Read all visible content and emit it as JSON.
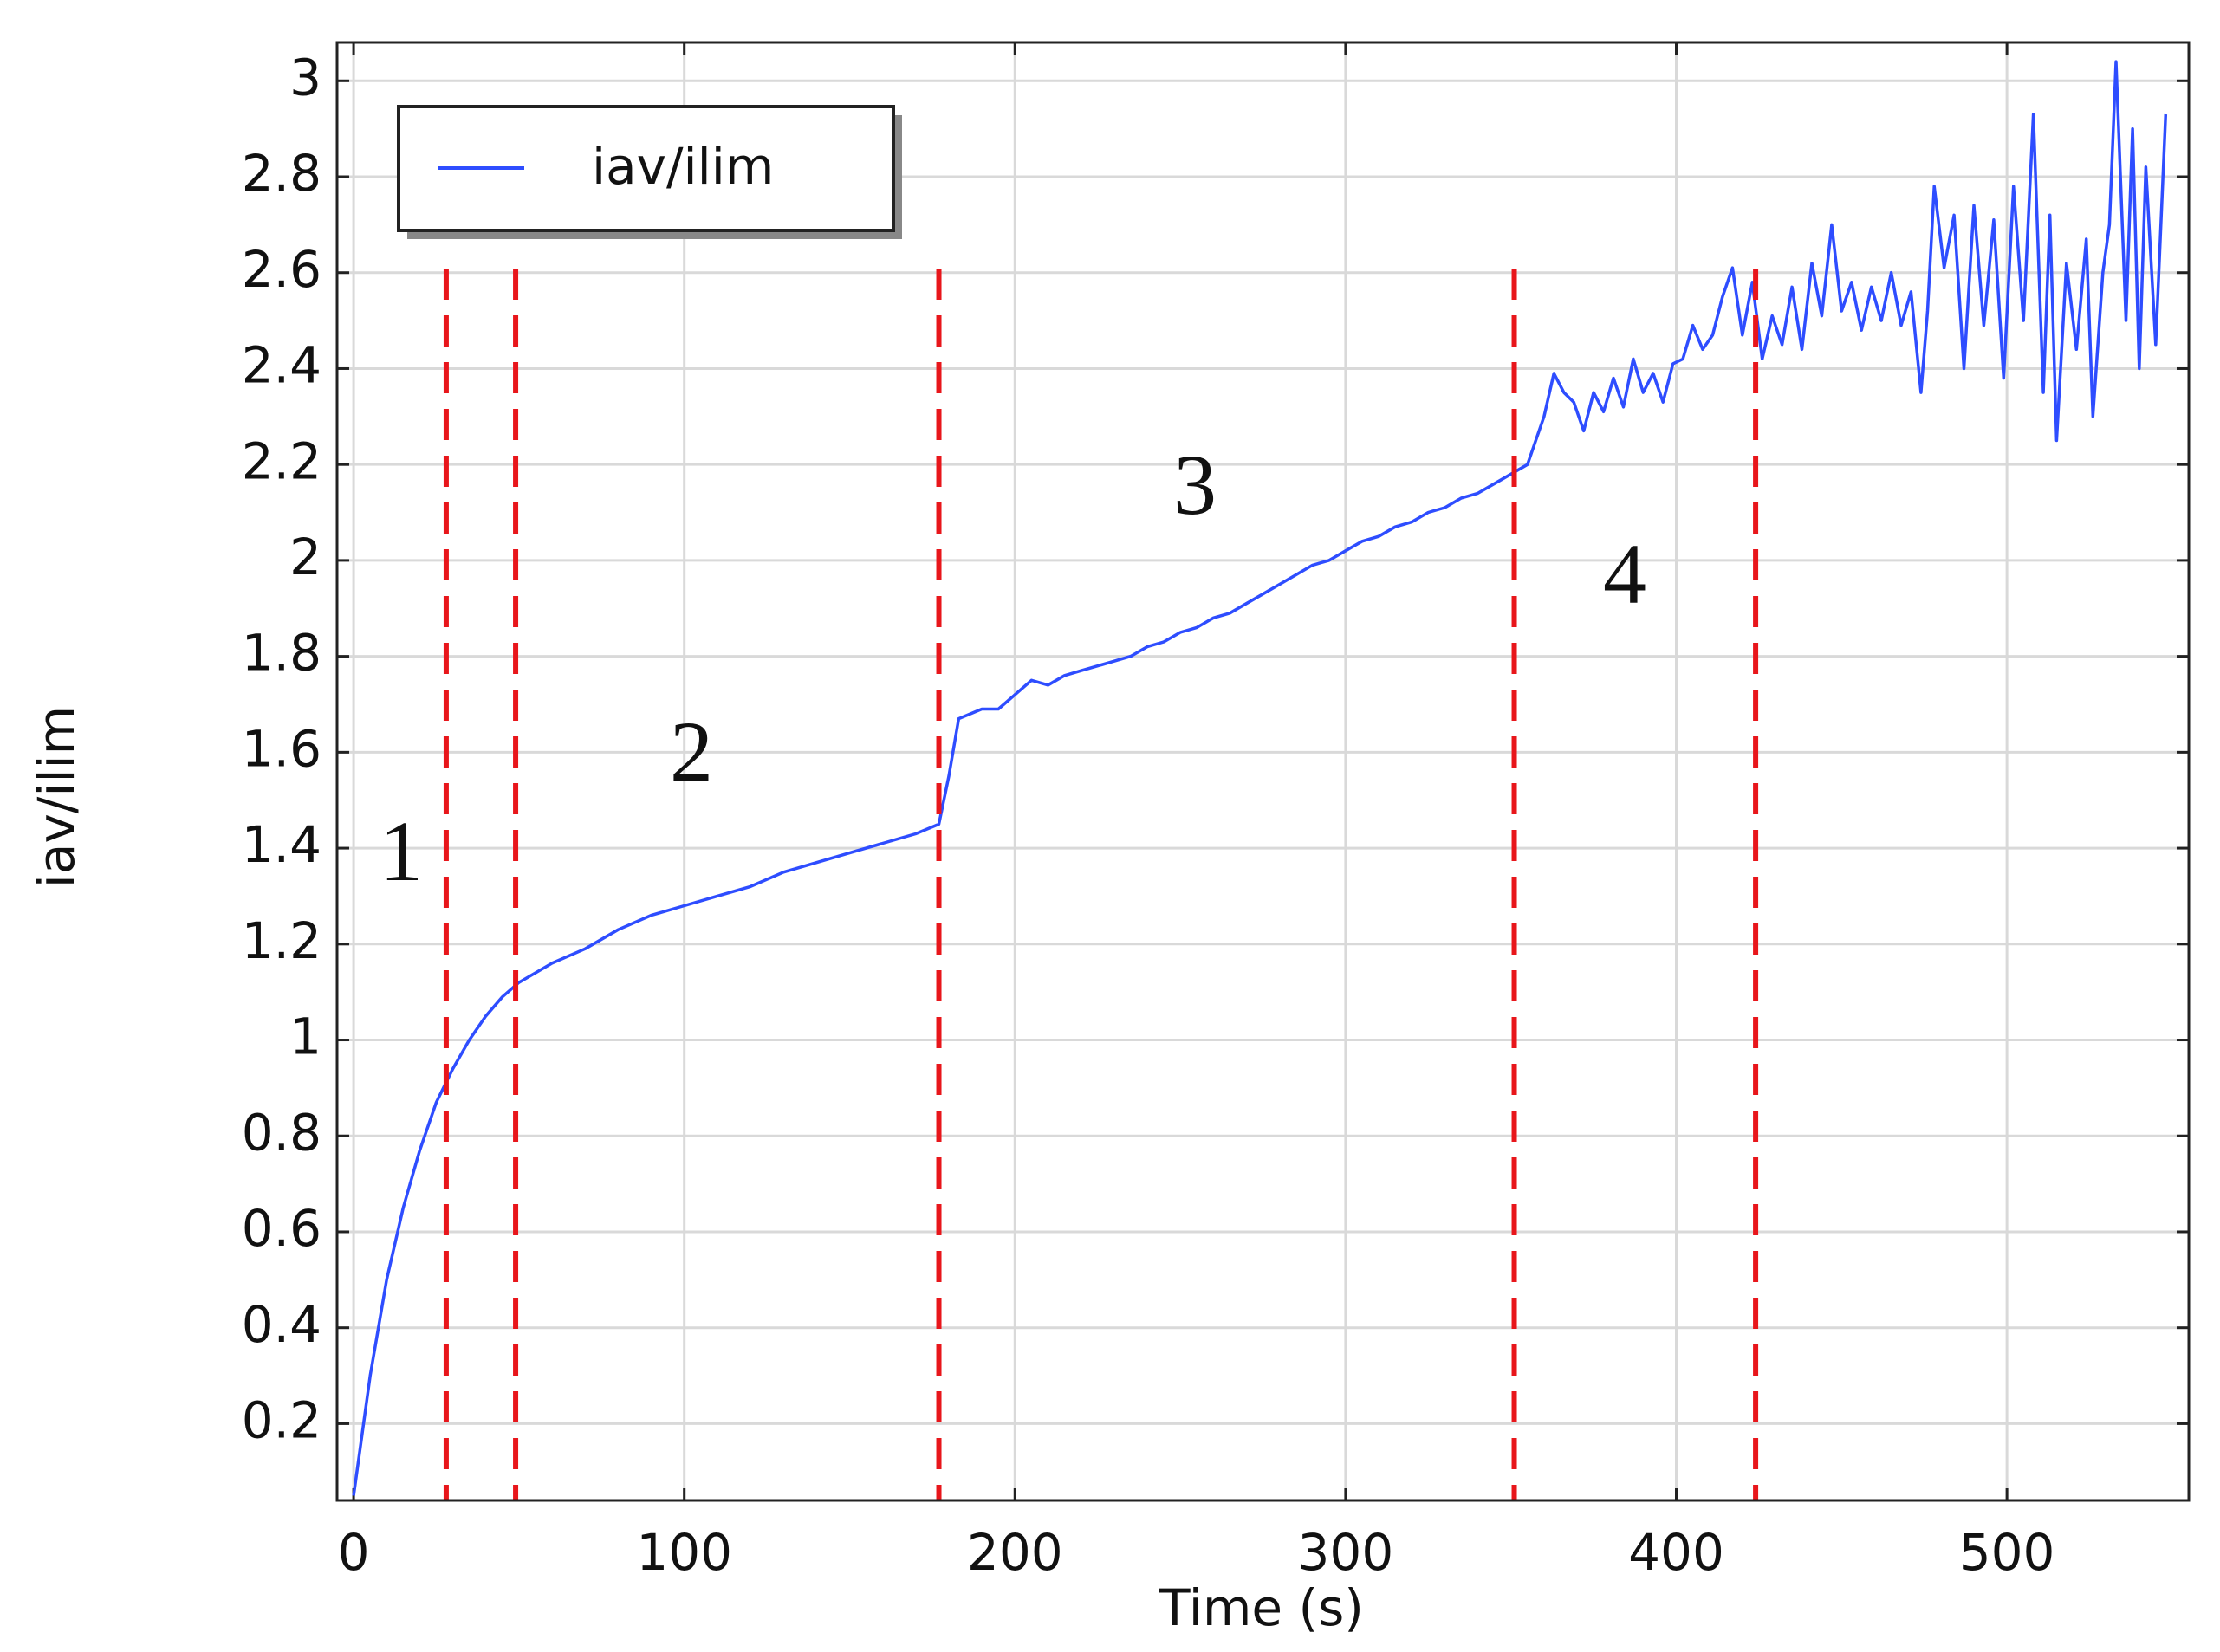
{
  "chart_data": {
    "type": "line",
    "xlabel": "Time (s)",
    "ylabel": "iav/ilim",
    "xlim": [
      -5,
      555
    ],
    "ylim": [
      0.04,
      3.08
    ],
    "xticks": [
      0,
      100,
      200,
      300,
      400,
      500
    ],
    "yticks": [
      0.2,
      0.4,
      0.6,
      0.8,
      1,
      1.2,
      1.4,
      1.6,
      1.8,
      2,
      2.2,
      2.4,
      2.6,
      2.8,
      3
    ],
    "grid": true,
    "legend": "upper left",
    "annotations": [
      "1",
      "2",
      "3",
      "4"
    ],
    "vlines": [
      28,
      49,
      177,
      351,
      424
    ],
    "vline_color": "#e8161b",
    "series": [
      {
        "name": "iav/ilim",
        "color": "#2e4dff",
        "x": [
          0,
          5,
          10,
          15,
          20,
          25,
          30,
          35,
          40,
          45,
          50,
          55,
          60,
          70,
          80,
          90,
          100,
          110,
          120,
          130,
          140,
          150,
          160,
          170,
          177,
          180,
          183,
          190,
          195,
          200,
          205,
          210,
          215,
          220,
          225,
          230,
          235,
          240,
          245,
          250,
          255,
          260,
          265,
          270,
          275,
          280,
          285,
          290,
          295,
          300,
          305,
          310,
          315,
          320,
          325,
          330,
          335,
          340,
          345,
          350,
          355,
          360,
          363,
          366,
          369,
          372,
          375,
          378,
          381,
          384,
          387,
          390,
          393,
          396,
          399,
          402,
          405,
          408,
          411,
          414,
          417,
          420,
          423,
          426,
          429,
          432,
          435,
          438,
          441,
          444,
          447,
          450,
          453,
          456,
          459,
          462,
          465,
          468,
          471,
          474,
          476,
          478,
          481,
          484,
          487,
          490,
          493,
          496,
          499,
          502,
          505,
          508,
          511,
          513,
          515,
          518,
          521,
          524,
          526,
          529,
          531,
          533,
          536,
          538,
          540,
          542,
          545,
          548
        ],
        "values": [
          0.05,
          0.3,
          0.5,
          0.65,
          0.77,
          0.87,
          0.94,
          1.0,
          1.05,
          1.09,
          1.12,
          1.14,
          1.16,
          1.19,
          1.23,
          1.26,
          1.28,
          1.3,
          1.32,
          1.35,
          1.37,
          1.39,
          1.41,
          1.43,
          1.45,
          1.55,
          1.67,
          1.69,
          1.69,
          1.72,
          1.75,
          1.74,
          1.76,
          1.77,
          1.78,
          1.79,
          1.8,
          1.82,
          1.83,
          1.85,
          1.86,
          1.88,
          1.89,
          1.91,
          1.93,
          1.95,
          1.97,
          1.99,
          2.0,
          2.02,
          2.04,
          2.05,
          2.07,
          2.08,
          2.1,
          2.11,
          2.13,
          2.14,
          2.16,
          2.18,
          2.2,
          2.3,
          2.39,
          2.35,
          2.33,
          2.27,
          2.35,
          2.31,
          2.38,
          2.32,
          2.42,
          2.35,
          2.39,
          2.33,
          2.41,
          2.42,
          2.49,
          2.44,
          2.47,
          2.55,
          2.61,
          2.47,
          2.58,
          2.42,
          2.51,
          2.45,
          2.57,
          2.44,
          2.62,
          2.51,
          2.7,
          2.52,
          2.58,
          2.48,
          2.57,
          2.5,
          2.6,
          2.49,
          2.56,
          2.35,
          2.52,
          2.78,
          2.61,
          2.72,
          2.4,
          2.74,
          2.49,
          2.71,
          2.38,
          2.78,
          2.5,
          2.93,
          2.35,
          2.72,
          2.25,
          2.62,
          2.44,
          2.67,
          2.3,
          2.6,
          2.7,
          3.04,
          2.5,
          2.9,
          2.4,
          2.82,
          2.45,
          2.93
        ]
      }
    ]
  }
}
